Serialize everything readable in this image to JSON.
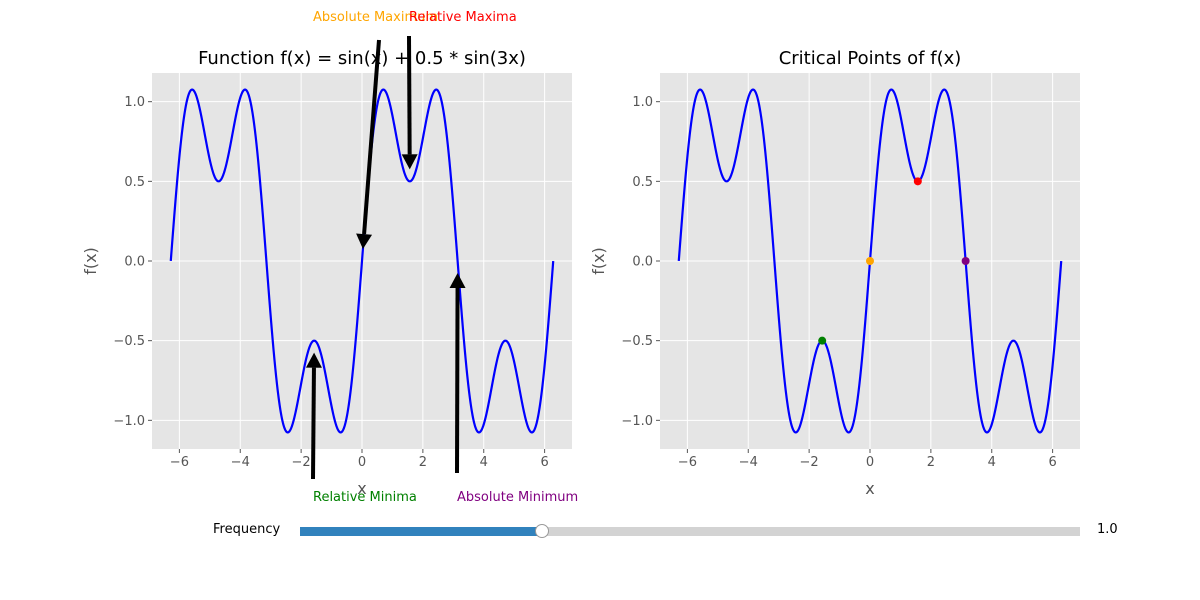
{
  "chart_data": [
    {
      "type": "line",
      "title": "Function f(x) = sin(x) + 0.5 * sin(3x)",
      "xlabel": "x",
      "ylabel": "f(x)",
      "xlim": [
        -6.9,
        6.9
      ],
      "ylim": [
        -1.18,
        1.18
      ],
      "xticks": [
        -6,
        -4,
        -2,
        0,
        2,
        4,
        6
      ],
      "xtick_labels": [
        "−6",
        "−4",
        "−2",
        "0",
        "2",
        "4",
        "6"
      ],
      "yticks": [
        -1.0,
        -0.5,
        0.0,
        0.5,
        1.0
      ],
      "ytick_labels": [
        "−1.0",
        "−0.5",
        "0.0",
        "0.5",
        "1.0"
      ],
      "grid": true,
      "series": [
        {
          "function": "sin(x) + 0.5 * sin(3x)",
          "x_range": [
            -6.283,
            6.283
          ],
          "color": "#0000ff"
        }
      ],
      "annotations": [
        {
          "text": "Absolute Maximum",
          "x": 0.0,
          "y": 0.0,
          "color": "#ffa500"
        },
        {
          "text": "Relative Maxima",
          "x": 1.571,
          "y": 0.5,
          "color": "#ff0000"
        },
        {
          "text": "Relative Minima",
          "x": -1.571,
          "y": -0.5,
          "color": "#008000"
        },
        {
          "text": "Absolute Minimum",
          "x": 3.142,
          "y": 0.0,
          "color": "#800080"
        }
      ]
    },
    {
      "type": "line",
      "title": "Critical Points of f(x)",
      "xlabel": "x",
      "ylabel": "f(x)",
      "xlim": [
        -6.9,
        6.9
      ],
      "ylim": [
        -1.18,
        1.18
      ],
      "xticks": [
        -6,
        -4,
        -2,
        0,
        2,
        4,
        6
      ],
      "xtick_labels": [
        "−6",
        "−4",
        "−2",
        "0",
        "2",
        "4",
        "6"
      ],
      "yticks": [
        -1.0,
        -0.5,
        0.0,
        0.5,
        1.0
      ],
      "ytick_labels": [
        "−1.0",
        "−0.5",
        "0.0",
        "0.5",
        "1.0"
      ],
      "grid": true,
      "series": [
        {
          "function": "sin(x) + 0.5 * sin(3x)",
          "x_range": [
            -6.283,
            6.283
          ],
          "color": "#0000ff"
        }
      ],
      "points": [
        {
          "x": 0.0,
          "y": 0.0,
          "color": "#ffa500"
        },
        {
          "x": 1.571,
          "y": 0.5,
          "color": "#ff0000"
        },
        {
          "x": -1.571,
          "y": -0.5,
          "color": "#008000"
        },
        {
          "x": 3.142,
          "y": 0.0,
          "color": "#800080"
        }
      ]
    }
  ],
  "slider": {
    "label": "Frequency",
    "value": "1.0",
    "fraction": 0.31,
    "fill_color": "#3182bd",
    "track_color": "#d3d3d3"
  }
}
